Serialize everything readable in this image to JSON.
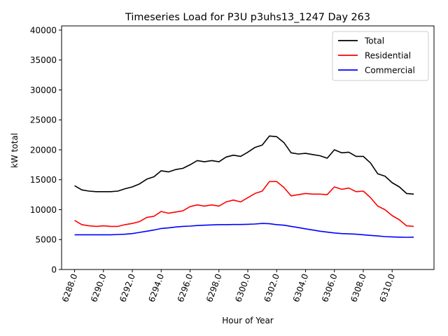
{
  "chart_data": {
    "type": "line",
    "title": "Timeseries Load for P3U p3uhs13_1247  Day 263",
    "xlabel": "Hour of Year",
    "ylabel": "kW total",
    "xlim": [
      6287.1,
      6312.9
    ],
    "ylim": [
      0,
      40700
    ],
    "x_ticks": [
      6288,
      6290,
      6292,
      6294,
      6296,
      6298,
      6300,
      6302,
      6304,
      6306,
      6308,
      6310
    ],
    "x_tick_labels": [
      "6288.0",
      "6290.0",
      "6292.0",
      "6294.0",
      "6296.0",
      "6298.0",
      "6300.0",
      "6302.0",
      "6304.0",
      "6306.0",
      "6308.0",
      "6310.0"
    ],
    "y_ticks": [
      0,
      5000,
      10000,
      15000,
      20000,
      25000,
      30000,
      35000,
      40000
    ],
    "y_tick_labels": [
      "0",
      "5000",
      "10000",
      "15000",
      "20000",
      "25000",
      "30000",
      "35000",
      "40000"
    ],
    "legend_position": "top-right",
    "x": [
      6288,
      6288.5,
      6289,
      6289.5,
      6290,
      6290.5,
      6291,
      6291.5,
      6292,
      6292.5,
      6293,
      6293.5,
      6294,
      6294.5,
      6295,
      6295.5,
      6296,
      6296.5,
      6297,
      6297.5,
      6298,
      6298.5,
      6299,
      6299.5,
      6300,
      6300.5,
      6301,
      6301.5,
      6302,
      6302.5,
      6303,
      6303.5,
      6304,
      6304.5,
      6305,
      6305.5,
      6306,
      6306.5,
      6307,
      6307.5,
      6308,
      6308.5,
      6309,
      6309.5,
      6310,
      6310.5,
      6311,
      6311.5
    ],
    "series": [
      {
        "name": "Total",
        "color": "#000000",
        "values": [
          14000,
          13300,
          13100,
          13000,
          13000,
          13000,
          13100,
          13500,
          13800,
          14300,
          15100,
          15500,
          16500,
          16300,
          16700,
          16900,
          17500,
          18200,
          18000,
          18200,
          18000,
          18800,
          19100,
          18900,
          19600,
          20400,
          20800,
          22300,
          22200,
          21200,
          19500,
          19300,
          19400,
          19200,
          19000,
          18600,
          20000,
          19500,
          19600,
          18900,
          18900,
          17800,
          16000,
          15600,
          14500,
          13800,
          12700,
          12600
        ]
      },
      {
        "name": "Residential",
        "color": "#ff0000",
        "values": [
          8200,
          7500,
          7300,
          7200,
          7300,
          7200,
          7200,
          7500,
          7700,
          8000,
          8700,
          8900,
          9700,
          9400,
          9600,
          9800,
          10500,
          10800,
          10600,
          10800,
          10600,
          11300,
          11600,
          11300,
          12000,
          12700,
          13100,
          14700,
          14700,
          13700,
          12300,
          12500,
          12700,
          12600,
          12600,
          12500,
          13800,
          13400,
          13600,
          13000,
          13100,
          12000,
          10600,
          10000,
          9000,
          8300,
          7300,
          7200
        ]
      },
      {
        "name": "Commercial",
        "color": "#0000ff",
        "values": [
          5800,
          5800,
          5800,
          5800,
          5800,
          5800,
          5850,
          5900,
          6000,
          6200,
          6400,
          6600,
          6850,
          6950,
          7100,
          7200,
          7250,
          7350,
          7400,
          7450,
          7500,
          7500,
          7520,
          7520,
          7550,
          7600,
          7700,
          7650,
          7500,
          7400,
          7200,
          7000,
          6800,
          6600,
          6400,
          6250,
          6100,
          6000,
          5950,
          5900,
          5800,
          5700,
          5600,
          5500,
          5450,
          5400,
          5380,
          5400
        ]
      }
    ]
  }
}
